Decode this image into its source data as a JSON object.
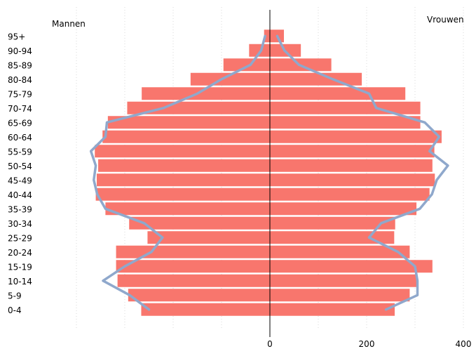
{
  "chart_data": {
    "type": "bar",
    "orientation": "horizontal",
    "subtype": "population-pyramid",
    "label_left": "Mannen",
    "label_right": "Vrouwen",
    "categories": [
      "0-4",
      "5-9",
      "10-14",
      "15-19",
      "20-24",
      "25-29",
      "30-34",
      "35-39",
      "40-44",
      "45-49",
      "50-54",
      "55-59",
      "60-64",
      "65-69",
      "70-74",
      "75-79",
      "80-84",
      "85-89",
      "90-94",
      "95+"
    ],
    "x_ticks": [
      0,
      200,
      400
    ],
    "xlim": [
      -400,
      400
    ],
    "grid": "vertical dotted",
    "series": [
      {
        "group": "Mannen",
        "kind": "bar",
        "color": "#f8766d",
        "values": [
          -266,
          -293,
          -315,
          -318,
          -318,
          -253,
          -291,
          -340,
          -360,
          -358,
          -355,
          -362,
          -346,
          -335,
          -295,
          -265,
          -164,
          -96,
          -43,
          -12
        ]
      },
      {
        "group": "Vrouwen",
        "kind": "bar",
        "color": "#f8766d",
        "values": [
          258,
          289,
          305,
          336,
          289,
          257,
          259,
          303,
          330,
          341,
          336,
          340,
          355,
          311,
          311,
          280,
          190,
          127,
          64,
          29
        ]
      },
      {
        "group": "Mannen",
        "kind": "line",
        "color": "#8fa8cc",
        "values": [
          -250,
          -290,
          -345,
          -300,
          -245,
          -222,
          -260,
          -340,
          -357,
          -364,
          -360,
          -370,
          -340,
          -337,
          -220,
          -150,
          -100,
          -40,
          -18,
          -10
        ]
      },
      {
        "group": "Vrouwen",
        "kind": "line",
        "color": "#8fa8cc",
        "values": [
          240,
          305,
          305,
          300,
          265,
          205,
          230,
          310,
          335,
          345,
          368,
          330,
          350,
          320,
          220,
          205,
          130,
          60,
          30,
          15
        ]
      }
    ]
  }
}
